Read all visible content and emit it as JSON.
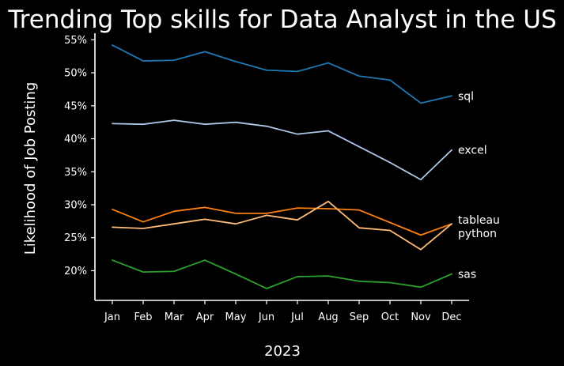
{
  "chart_data": {
    "type": "line",
    "title": "Trending Top skills for Data Analyst in the US",
    "xlabel": "2023",
    "ylabel": "Likelihood of Job Posting",
    "categories": [
      "Jan",
      "Feb",
      "Mar",
      "Apr",
      "May",
      "Jun",
      "Jul",
      "Aug",
      "Sep",
      "Oct",
      "Nov",
      "Dec"
    ],
    "yticks": [
      "20%",
      "25%",
      "30%",
      "35%",
      "40%",
      "45%",
      "50%",
      "55%"
    ],
    "ylim": [
      15.5,
      56
    ],
    "grid": false,
    "legend": "inline-right-end",
    "series": [
      {
        "name": "sql",
        "color": "#1f77b4",
        "values": [
          54.2,
          51.8,
          51.9,
          53.2,
          51.7,
          50.4,
          50.2,
          51.5,
          49.5,
          48.9,
          45.4,
          46.5
        ]
      },
      {
        "name": "excel",
        "color": "#aec7e8",
        "values": [
          42.3,
          42.2,
          42.8,
          42.2,
          42.5,
          41.9,
          40.7,
          41.2,
          38.8,
          36.4,
          33.8,
          38.3
        ]
      },
      {
        "name": "tableau",
        "color": "#ff7f0e",
        "values": [
          29.3,
          27.4,
          29.0,
          29.6,
          28.7,
          28.7,
          29.5,
          29.4,
          29.2,
          27.3,
          25.4,
          27.1
        ]
      },
      {
        "name": "python",
        "color": "#ffbb78",
        "values": [
          26.6,
          26.4,
          27.1,
          27.8,
          27.1,
          28.4,
          27.7,
          30.5,
          26.5,
          26.1,
          23.2,
          27.1
        ]
      },
      {
        "name": "sas",
        "color": "#2ca02c",
        "values": [
          21.6,
          19.8,
          19.9,
          21.6,
          19.5,
          17.3,
          19.1,
          19.2,
          18.4,
          18.2,
          17.5,
          19.5
        ]
      }
    ]
  }
}
